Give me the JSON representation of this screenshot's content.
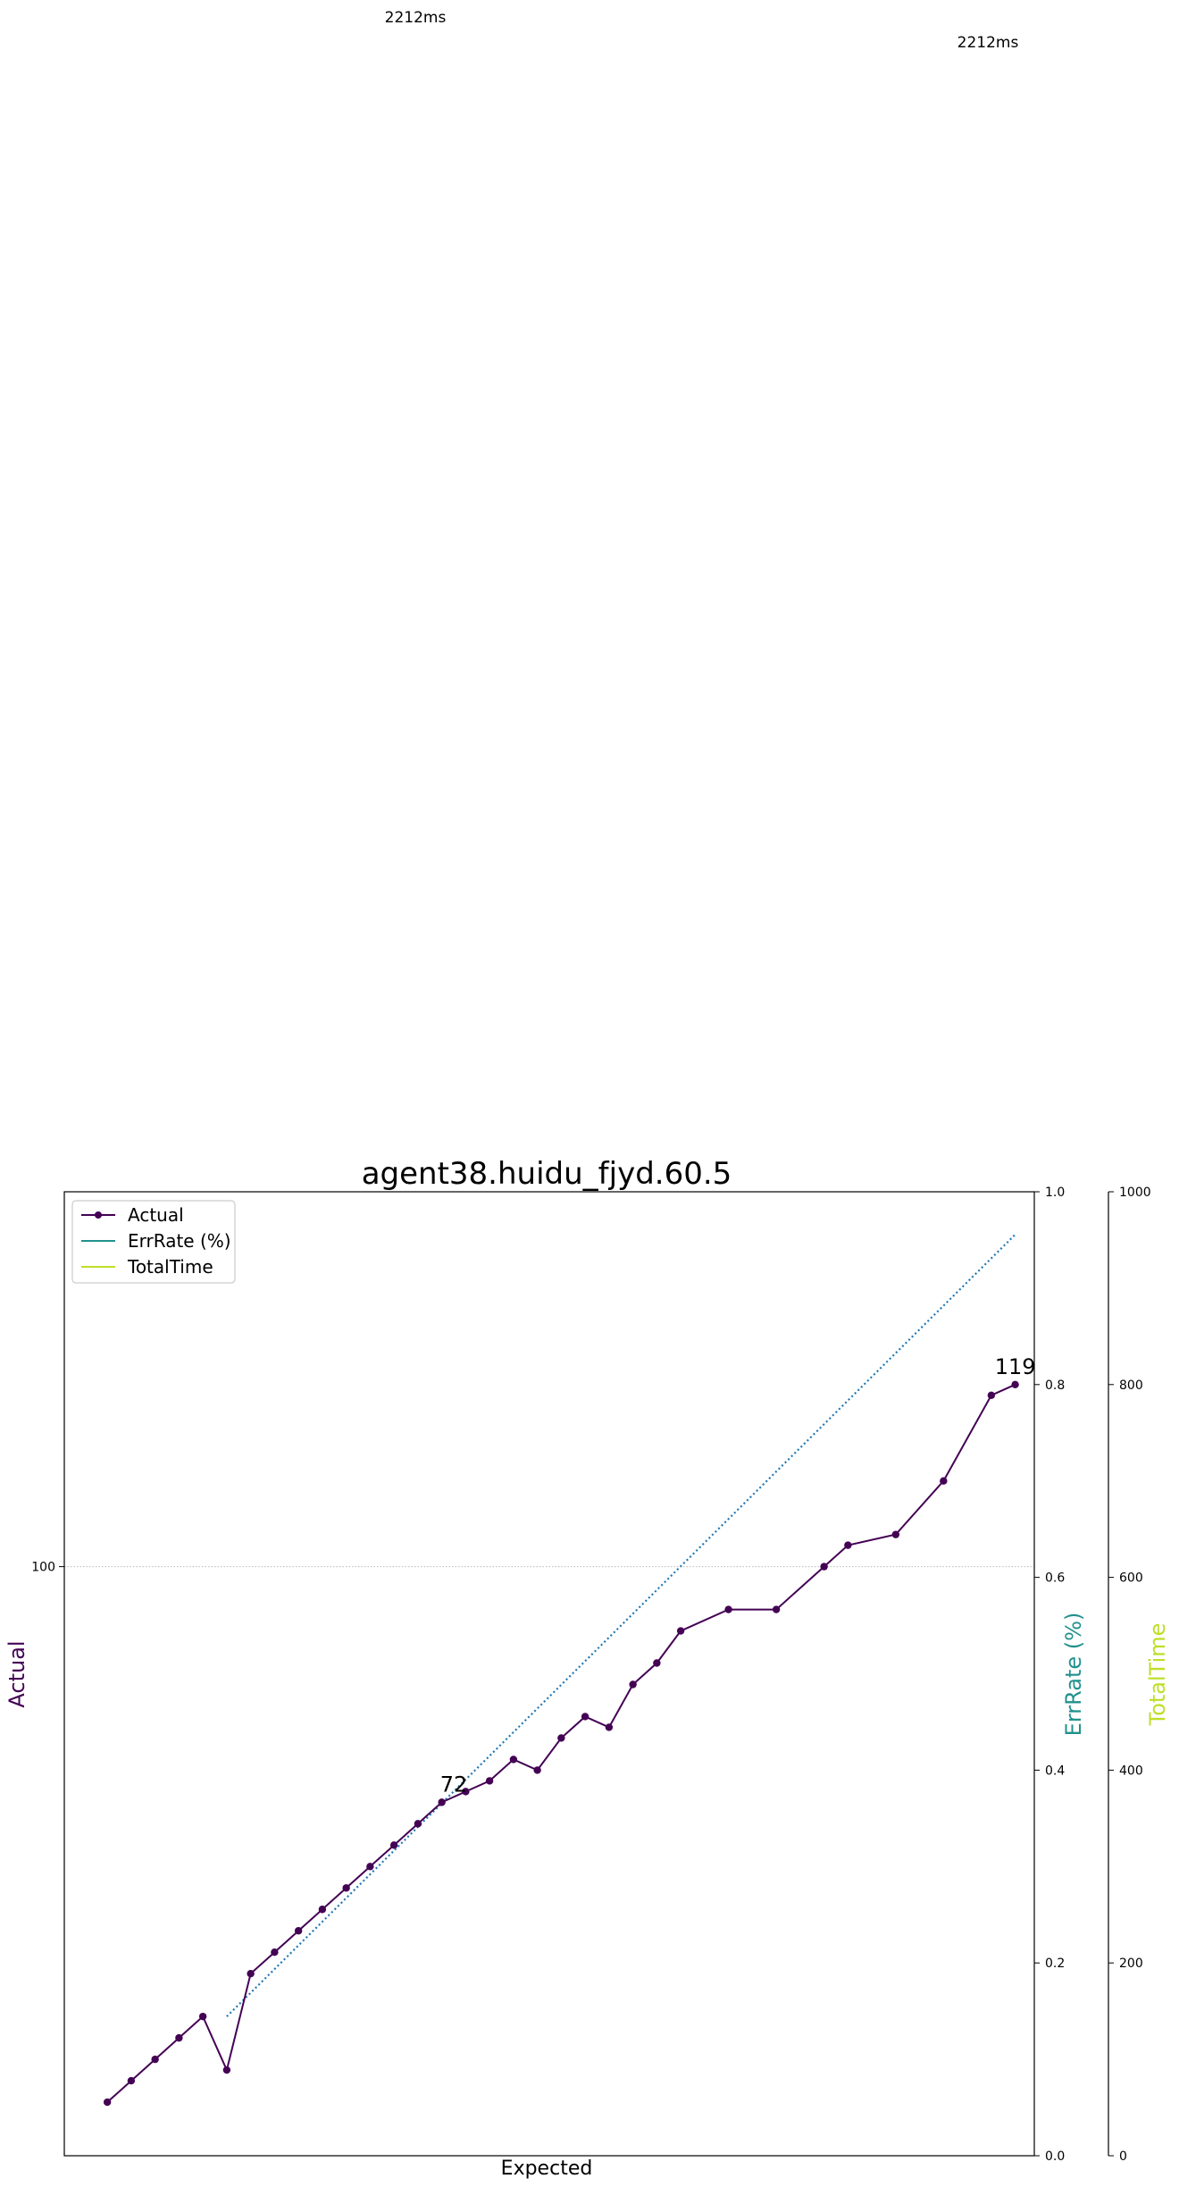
{
  "top_labels": [
    "2212ms",
    "2212ms"
  ],
  "chart_data": {
    "type": "line",
    "title": "agent38.huidu_fjyd.60.5",
    "xlabel": "Expected",
    "ylabel": "Actual",
    "ylabel2": "ErrRate (%)",
    "ylabel3": "TotalTime",
    "x": [
      40,
      41,
      42,
      43,
      44,
      45,
      46,
      47,
      48,
      49,
      50,
      51,
      52,
      53,
      54,
      55,
      56,
      57,
      58,
      59,
      60,
      61,
      62,
      63,
      64,
      65,
      66,
      67,
      68,
      69,
      70,
      71,
      72,
      73,
      74,
      75,
      76,
      77,
      78
    ],
    "xlim": [
      38.2,
      78.8
    ],
    "ylim": [
      45,
      135
    ],
    "y_ticks": [
      100
    ],
    "y2_lim": [
      0.0,
      1.0
    ],
    "y2_ticks": [
      "0.0",
      "0.2",
      "0.4",
      "0.6",
      "0.8",
      "1.0"
    ],
    "y3_lim": [
      0,
      1000
    ],
    "y3_ticks": [
      "0",
      "200",
      "400",
      "600",
      "800",
      "1000"
    ],
    "series": [
      {
        "name": "Actual",
        "color": "#440154",
        "marker": "o",
        "x": [
          40,
          41,
          42,
          43,
          44,
          45,
          46,
          47,
          48,
          49,
          50,
          51,
          52,
          53,
          54,
          55,
          56,
          57,
          58,
          59,
          60,
          61,
          62,
          63,
          64,
          66,
          68,
          70,
          71,
          73,
          75,
          77,
          78
        ],
        "values": [
          50,
          52,
          54,
          56,
          58,
          53,
          62,
          64,
          66,
          68,
          70,
          72,
          74,
          76,
          78,
          79,
          80,
          82,
          81,
          84,
          86,
          85,
          89,
          91,
          94,
          96,
          96,
          100,
          102,
          103,
          108,
          116,
          117
        ]
      },
      {
        "name": "ErrRate (%)",
        "color": "#21918c",
        "x": [],
        "values": []
      },
      {
        "name": "TotalTime",
        "color": "#bddf26",
        "x": [],
        "values": []
      }
    ],
    "reference_line": {
      "style": "dotted",
      "color": "#1f77b4",
      "x": [
        45,
        78
      ],
      "values": [
        58,
        131
      ]
    },
    "horizontal_line": {
      "value": 100,
      "style": "dotted",
      "color": "#bbbbbb"
    },
    "annotations": [
      {
        "text": "72",
        "x": 54.5,
        "y": 79
      },
      {
        "text": "119",
        "x": 78,
        "y": 118
      }
    ],
    "legend": [
      "Actual",
      "ErrRate (%)",
      "TotalTime"
    ],
    "legend_placement": "top-left"
  }
}
